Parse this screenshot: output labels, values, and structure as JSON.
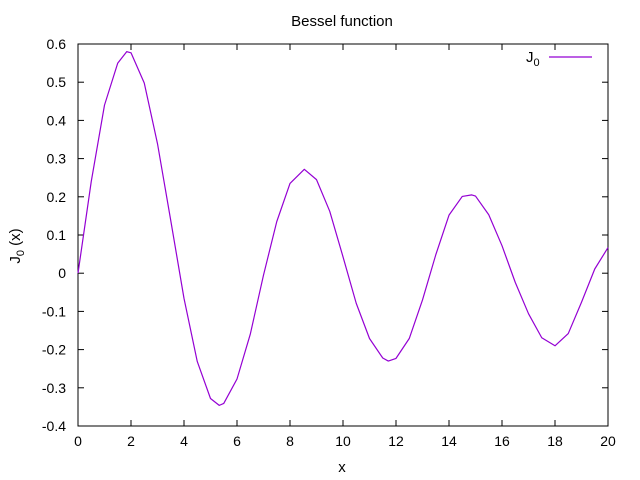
{
  "chart_data": {
    "type": "line",
    "title": "Bessel function",
    "xlabel": "x",
    "ylabel": {
      "base": "J",
      "sub": "0",
      "suffix": " (x)"
    },
    "xlim": [
      0,
      20
    ],
    "ylim": [
      -0.4,
      0.6
    ],
    "xticks": [
      0,
      2,
      4,
      6,
      8,
      10,
      12,
      14,
      16,
      18,
      20
    ],
    "yticks": [
      -0.4,
      -0.3,
      -0.2,
      -0.1,
      0,
      0.1,
      0.2,
      0.3,
      0.4,
      0.5,
      0.6
    ],
    "grid": false,
    "legend_position": "top-right",
    "series": [
      {
        "name": "J0",
        "legend_label": {
          "base": "J",
          "sub": "0"
        },
        "color": "#9400d3",
        "x": [
          0,
          0.5,
          1,
          1.5,
          1.84,
          2,
          2.5,
          3,
          3.5,
          4,
          4.5,
          5,
          5.33,
          5.5,
          6,
          6.5,
          7,
          7.5,
          8,
          8.54,
          9,
          9.5,
          10,
          10.5,
          11,
          11.5,
          11.71,
          12,
          12.5,
          13,
          13.5,
          14,
          14.5,
          14.86,
          15,
          15.5,
          16,
          16.5,
          17,
          17.5,
          18,
          18.5,
          19,
          19.5,
          20
        ],
        "y": [
          0.0,
          0.24,
          0.44,
          0.55,
          0.58,
          0.577,
          0.498,
          0.339,
          0.138,
          -0.066,
          -0.231,
          -0.328,
          -0.346,
          -0.341,
          -0.277,
          -0.16,
          -0.005,
          0.135,
          0.235,
          0.272,
          0.245,
          0.162,
          0.043,
          -0.079,
          -0.171,
          -0.222,
          -0.23,
          -0.223,
          -0.171,
          -0.07,
          0.048,
          0.152,
          0.201,
          0.205,
          0.202,
          0.153,
          0.072,
          -0.024,
          -0.106,
          -0.169,
          -0.19,
          -0.158,
          -0.076,
          0.011,
          0.067
        ]
      }
    ]
  }
}
